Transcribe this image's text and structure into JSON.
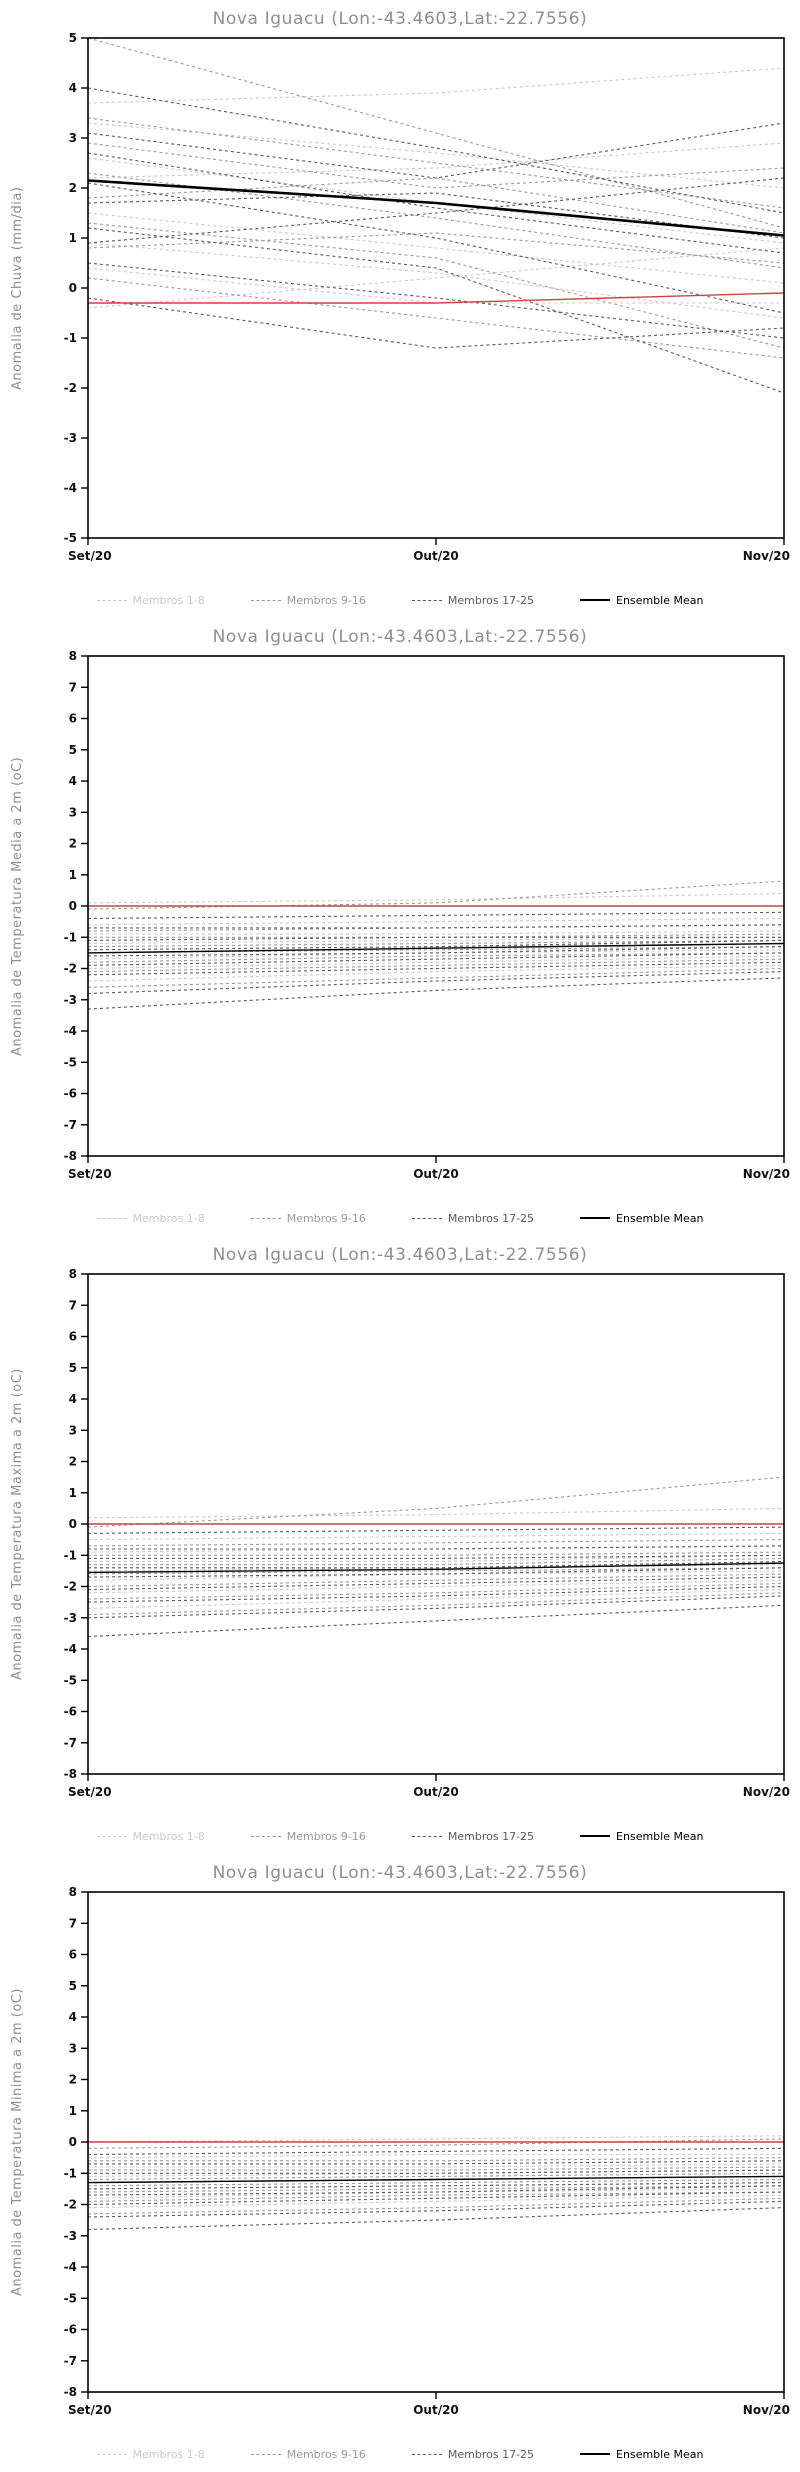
{
  "colors": {
    "title_text": "#8f8f8f",
    "axis_text": "#111111",
    "reference_line": "#cc4444",
    "ensemble_mean": "#000000"
  },
  "chart_data": [
    {
      "type": "line",
      "title": "Nova Iguacu (Lon:-43.4603,Lat:-22.7556)",
      "ylabel": "Anomalia de Chuva (mm/dia)",
      "x_labels": [
        "Set/20",
        "Out/20",
        "Nov/20"
      ],
      "ylim": [
        -5,
        5
      ],
      "ytick_step": 1,
      "grid": false,
      "legend_position": "bottom",
      "legend": [
        {
          "label": "Membros 1-8",
          "color": "#c9c9c9",
          "style": "dashed"
        },
        {
          "label": "Membros 9-16",
          "color": "#9a9a9a",
          "style": "dashed"
        },
        {
          "label": "Membros 17-25",
          "color": "#5a5a5a",
          "style": "dashed"
        },
        {
          "label": "Ensemble Mean",
          "color": "#000000",
          "style": "solid"
        }
      ],
      "mean_line_width": 2.6,
      "series": {
        "membros_1_8": [
          [
            3.7,
            3.9,
            4.4
          ],
          [
            3.3,
            2.7,
            2.0
          ],
          [
            2.6,
            1.7,
            0.9
          ],
          [
            2.2,
            2.4,
            2.9
          ],
          [
            1.5,
            0.8,
            0.1
          ],
          [
            0.9,
            0.3,
            -0.6
          ],
          [
            0.4,
            -0.3,
            -0.3
          ],
          [
            -0.4,
            0.2,
            0.8
          ]
        ],
        "membros_9_16": [
          [
            5.0,
            3.1,
            1.2
          ],
          [
            3.4,
            2.5,
            1.6
          ],
          [
            2.9,
            2.0,
            2.4
          ],
          [
            2.3,
            1.4,
            0.4
          ],
          [
            1.8,
            2.2,
            1.1
          ],
          [
            1.3,
            0.6,
            -1.2
          ],
          [
            0.8,
            1.1,
            0.5
          ],
          [
            0.2,
            -0.6,
            -1.4
          ]
        ],
        "membros_17_25": [
          [
            4.0,
            2.8,
            1.5
          ],
          [
            3.1,
            2.2,
            3.3
          ],
          [
            2.7,
            1.6,
            0.7
          ],
          [
            2.1,
            1.0,
            -0.5
          ],
          [
            1.7,
            1.9,
            1.0
          ],
          [
            1.2,
            0.4,
            -2.1
          ],
          [
            0.9,
            1.5,
            2.2
          ],
          [
            0.5,
            -0.2,
            -1.0
          ],
          [
            -0.2,
            -1.2,
            -0.8
          ]
        ],
        "ensemble_mean": [
          2.15,
          1.7,
          1.05
        ],
        "reference_line": [
          -0.3,
          -0.3,
          -0.1
        ]
      }
    },
    {
      "type": "line",
      "title": "Nova Iguacu (Lon:-43.4603,Lat:-22.7556)",
      "ylabel": "Anomalia de Temperatura Media a 2m (oC)",
      "x_labels": [
        "Set/20",
        "Out/20",
        "Nov/20"
      ],
      "ylim": [
        -8,
        8
      ],
      "ytick_step": 1,
      "grid": false,
      "legend_position": "bottom",
      "legend": [
        {
          "label": "Membros 1-8",
          "color": "#c9c9c9",
          "style": "dashed"
        },
        {
          "label": "Membros 9-16",
          "color": "#9a9a9a",
          "style": "dashed"
        },
        {
          "label": "Membros 17-25",
          "color": "#5a5a5a",
          "style": "dashed"
        },
        {
          "label": "Ensemble Mean",
          "color": "#000000",
          "style": "solid"
        }
      ],
      "mean_line_width": 1.4,
      "series": {
        "membros_1_8": [
          [
            0.1,
            0.2,
            0.4
          ],
          [
            -0.6,
            -0.5,
            -0.4
          ],
          [
            -0.9,
            -0.9,
            -0.8
          ],
          [
            -1.2,
            -1.1,
            -1.0
          ],
          [
            -1.4,
            -1.3,
            -1.2
          ],
          [
            -1.7,
            -1.5,
            -1.4
          ],
          [
            -2.0,
            -1.8,
            -1.6
          ],
          [
            -2.4,
            -2.1,
            -1.9
          ]
        ],
        "membros_9_16": [
          [
            -0.1,
            0.1,
            0.8
          ],
          [
            -0.8,
            -0.7,
            -0.6
          ],
          [
            -1.0,
            -1.0,
            -0.9
          ],
          [
            -1.3,
            -1.2,
            -1.1
          ],
          [
            -1.5,
            -1.4,
            -1.3
          ],
          [
            -1.8,
            -1.6,
            -1.5
          ],
          [
            -2.1,
            -1.9,
            -1.7
          ],
          [
            -2.6,
            -2.3,
            -2.0
          ]
        ],
        "membros_17_25": [
          [
            -0.4,
            -0.3,
            -0.2
          ],
          [
            -0.7,
            -0.7,
            -0.6
          ],
          [
            -1.1,
            -1.0,
            -1.0
          ],
          [
            -1.4,
            -1.3,
            -1.1
          ],
          [
            -1.6,
            -1.5,
            -1.3
          ],
          [
            -1.9,
            -1.7,
            -1.5
          ],
          [
            -2.2,
            -2.0,
            -1.8
          ],
          [
            -2.8,
            -2.4,
            -2.1
          ],
          [
            -3.3,
            -2.7,
            -2.3
          ]
        ],
        "ensemble_mean": [
          -1.5,
          -1.35,
          -1.2
        ],
        "reference_line": [
          0,
          0,
          0
        ]
      }
    },
    {
      "type": "line",
      "title": "Nova Iguacu (Lon:-43.4603,Lat:-22.7556)",
      "ylabel": "Anomalia de Temperatura Maxima a 2m (oC)",
      "x_labels": [
        "Set/20",
        "Out/20",
        "Nov/20"
      ],
      "ylim": [
        -8,
        8
      ],
      "ytick_step": 1,
      "grid": false,
      "legend_position": "bottom",
      "legend": [
        {
          "label": "Membros 1-8",
          "color": "#c9c9c9",
          "style": "dashed"
        },
        {
          "label": "Membros 9-16",
          "color": "#9a9a9a",
          "style": "dashed"
        },
        {
          "label": "Membros 17-25",
          "color": "#5a5a5a",
          "style": "dashed"
        },
        {
          "label": "Ensemble Mean",
          "color": "#000000",
          "style": "solid"
        }
      ],
      "mean_line_width": 1.4,
      "series": {
        "membros_1_8": [
          [
            0.2,
            0.3,
            0.5
          ],
          [
            -0.5,
            -0.4,
            -0.3
          ],
          [
            -0.9,
            -0.8,
            -0.7
          ],
          [
            -1.2,
            -1.2,
            -1.0
          ],
          [
            -1.5,
            -1.4,
            -1.3
          ],
          [
            -1.8,
            -1.6,
            -1.5
          ],
          [
            -2.2,
            -2.0,
            -1.8
          ],
          [
            -2.7,
            -2.4,
            -2.1
          ]
        ],
        "membros_9_16": [
          [
            -0.1,
            0.5,
            1.5
          ],
          [
            -0.7,
            -0.6,
            -0.5
          ],
          [
            -1.0,
            -1.0,
            -0.9
          ],
          [
            -1.3,
            -1.3,
            -1.1
          ],
          [
            -1.6,
            -1.5,
            -1.4
          ],
          [
            -2.0,
            -1.8,
            -1.6
          ],
          [
            -2.4,
            -2.2,
            -1.9
          ],
          [
            -2.9,
            -2.6,
            -2.2
          ]
        ],
        "membros_17_25": [
          [
            -0.3,
            -0.2,
            -0.1
          ],
          [
            -0.8,
            -0.8,
            -0.7
          ],
          [
            -1.1,
            -1.1,
            -1.0
          ],
          [
            -1.4,
            -1.4,
            -1.2
          ],
          [
            -1.7,
            -1.6,
            -1.4
          ],
          [
            -2.1,
            -1.9,
            -1.7
          ],
          [
            -2.5,
            -2.3,
            -2.0
          ],
          [
            -3.0,
            -2.7,
            -2.3
          ],
          [
            -3.6,
            -3.1,
            -2.6
          ]
        ],
        "ensemble_mean": [
          -1.55,
          -1.45,
          -1.25
        ],
        "reference_line": [
          0,
          0,
          0
        ]
      }
    },
    {
      "type": "line",
      "title": "Nova Iguacu (Lon:-43.4603,Lat:-22.7556)",
      "ylabel": "Anomalia de Temperatura Minima a 2m (oC)",
      "x_labels": [
        "Set/20",
        "Out/20",
        "Nov/20"
      ],
      "ylim": [
        -8,
        8
      ],
      "ytick_step": 1,
      "grid": false,
      "legend_position": "bottom",
      "legend": [
        {
          "label": "Membros 1-8",
          "color": "#c9c9c9",
          "style": "dashed"
        },
        {
          "label": "Membros 9-16",
          "color": "#9a9a9a",
          "style": "dashed"
        },
        {
          "label": "Membros 17-25",
          "color": "#5a5a5a",
          "style": "dashed"
        },
        {
          "label": "Ensemble Mean",
          "color": "#000000",
          "style": "solid"
        }
      ],
      "mean_line_width": 1.4,
      "series": {
        "membros_1_8": [
          [
            0.0,
            0.1,
            0.2
          ],
          [
            -0.5,
            -0.4,
            -0.4
          ],
          [
            -0.8,
            -0.8,
            -0.7
          ],
          [
            -1.1,
            -1.0,
            -0.9
          ],
          [
            -1.3,
            -1.2,
            -1.1
          ],
          [
            -1.5,
            -1.4,
            -1.3
          ],
          [
            -1.8,
            -1.6,
            -1.5
          ],
          [
            -2.1,
            -1.9,
            -1.7
          ]
        ],
        "membros_9_16": [
          [
            -0.2,
            -0.1,
            0.1
          ],
          [
            -0.6,
            -0.6,
            -0.5
          ],
          [
            -0.9,
            -0.9,
            -0.8
          ],
          [
            -1.2,
            -1.1,
            -1.0
          ],
          [
            -1.4,
            -1.3,
            -1.2
          ],
          [
            -1.6,
            -1.5,
            -1.4
          ],
          [
            -1.9,
            -1.7,
            -1.6
          ],
          [
            -2.3,
            -2.1,
            -1.8
          ]
        ],
        "membros_17_25": [
          [
            -0.4,
            -0.3,
            -0.2
          ],
          [
            -0.7,
            -0.7,
            -0.6
          ],
          [
            -1.0,
            -1.0,
            -0.9
          ],
          [
            -1.3,
            -1.2,
            -1.1
          ],
          [
            -1.5,
            -1.4,
            -1.3
          ],
          [
            -1.7,
            -1.6,
            -1.4
          ],
          [
            -2.0,
            -1.8,
            -1.6
          ],
          [
            -2.4,
            -2.2,
            -1.9
          ],
          [
            -2.8,
            -2.5,
            -2.1
          ]
        ],
        "ensemble_mean": [
          -1.3,
          -1.2,
          -1.1
        ],
        "reference_line": [
          0,
          0,
          0
        ]
      }
    }
  ]
}
